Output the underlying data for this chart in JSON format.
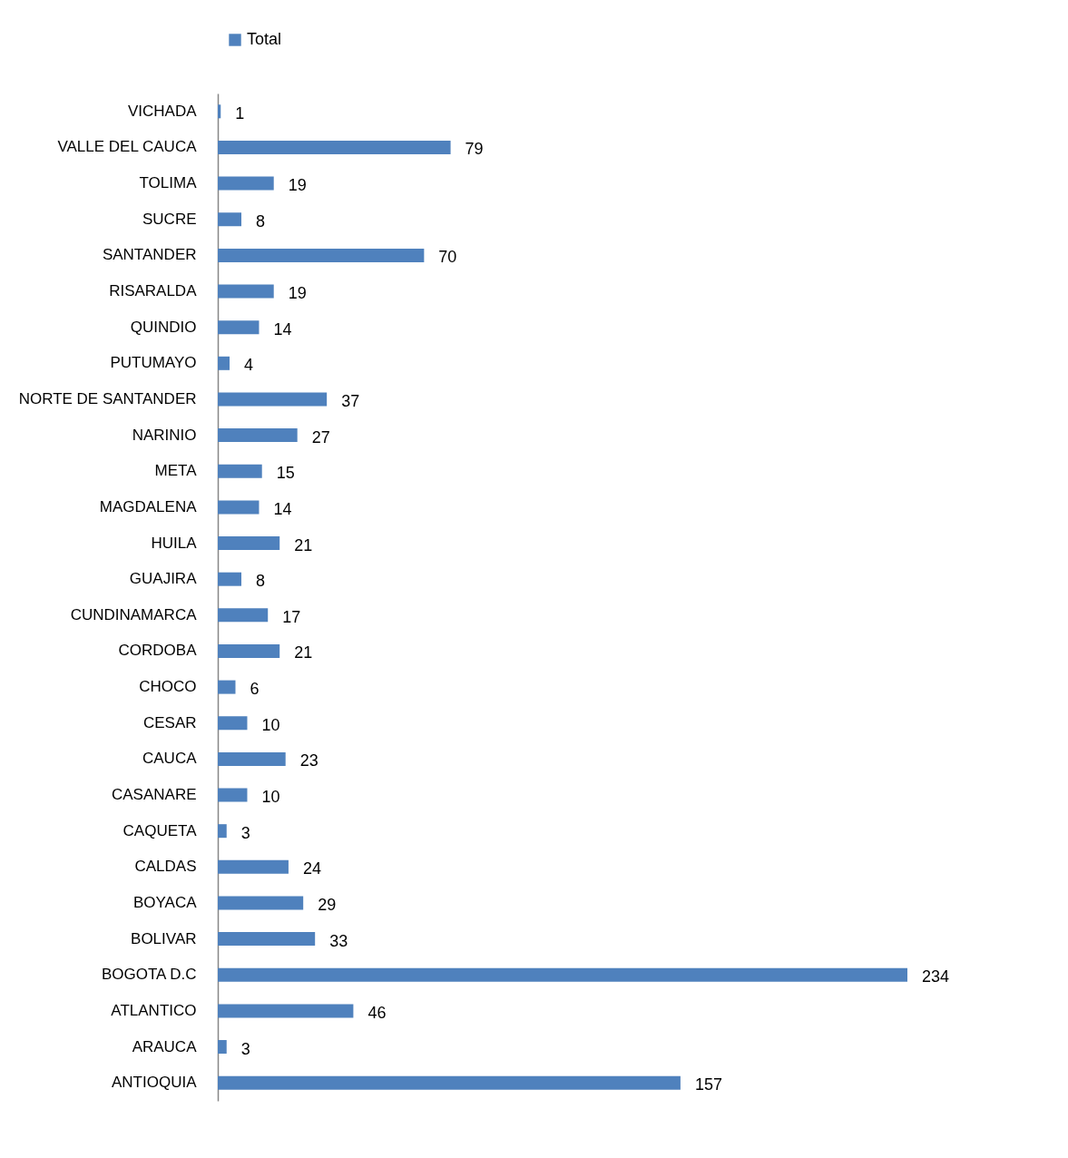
{
  "chart_data": {
    "type": "bar",
    "orientation": "horizontal",
    "data_labels": true,
    "legend": "top",
    "tick_labels": "y",
    "categories": [
      "VICHADA",
      "VALLE DEL CAUCA",
      "TOLIMA",
      "SUCRE",
      "SANTANDER",
      "RISARALDA",
      "QUINDIO",
      "PUTUMAYO",
      "NORTE DE SANTANDER",
      "NARINIO",
      "META",
      "MAGDALENA",
      "HUILA",
      "GUAJIRA",
      "CUNDINAMARCA",
      "CORDOBA",
      "CHOCO",
      "CESAR",
      "CAUCA",
      "CASANARE",
      "CAQUETA",
      "CALDAS",
      "BOYACA",
      "BOLIVAR",
      "BOGOTA D.C",
      "ATLANTICO",
      "ARAUCA",
      "ANTIOQUIA"
    ],
    "series": [
      {
        "name": "Total",
        "color": "#4f81bd",
        "values": [
          1,
          79,
          19,
          8,
          70,
          19,
          14,
          4,
          37,
          27,
          15,
          14,
          21,
          8,
          17,
          21,
          6,
          10,
          23,
          10,
          3,
          24,
          29,
          33,
          234,
          46,
          3,
          157
        ]
      }
    ]
  }
}
